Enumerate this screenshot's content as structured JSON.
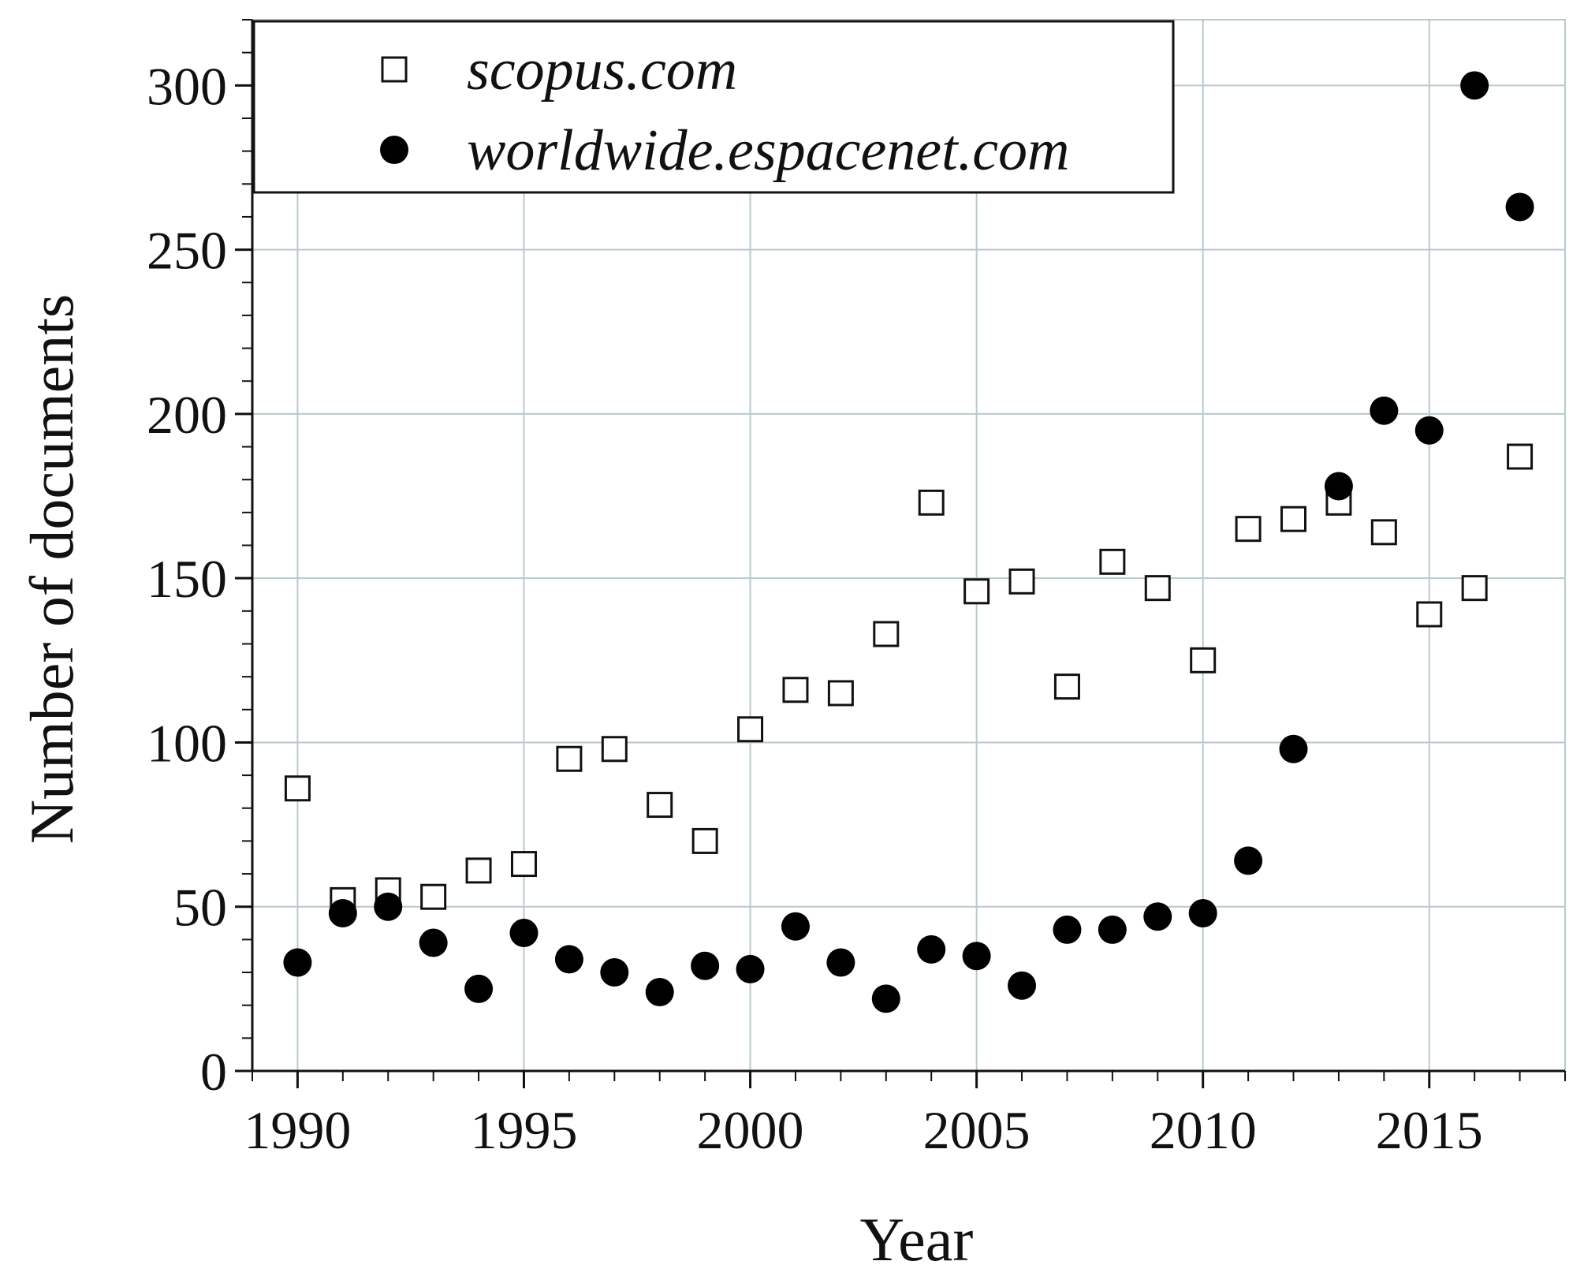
{
  "chart_data": {
    "type": "scatter",
    "xlabel": "Year",
    "ylabel": "Number of documents",
    "xlim": [
      1989,
      2018
    ],
    "ylim": [
      0,
      320
    ],
    "xticks": [
      1990,
      1995,
      2000,
      2005,
      2010,
      2015
    ],
    "xtick_labels": [
      "1990",
      "1995",
      "2000",
      "2005",
      "2010",
      "2015"
    ],
    "yticks": [
      0,
      50,
      100,
      150,
      200,
      250,
      300
    ],
    "ytick_labels": [
      "0",
      "50",
      "100",
      "150",
      "200",
      "250",
      "300"
    ],
    "grid": true,
    "legend_position": "top-left",
    "series": [
      {
        "name": "scopus.com",
        "marker": "open-square",
        "color": "#111111",
        "x": [
          1990,
          1991,
          1992,
          1993,
          1994,
          1995,
          1996,
          1997,
          1998,
          1999,
          2000,
          2001,
          2002,
          2003,
          2004,
          2005,
          2006,
          2007,
          2008,
          2009,
          2010,
          2011,
          2012,
          2013,
          2014,
          2015,
          2016,
          2017
        ],
        "y": [
          86,
          52,
          55,
          53,
          61,
          63,
          95,
          98,
          81,
          70,
          104,
          116,
          115,
          133,
          173,
          146,
          149,
          117,
          155,
          147,
          125,
          165,
          168,
          173,
          164,
          139,
          147,
          187
        ]
      },
      {
        "name": "worldwide.espacenet.com",
        "marker": "filled-circle",
        "color": "#000000",
        "x": [
          1990,
          1991,
          1992,
          1993,
          1994,
          1995,
          1996,
          1997,
          1998,
          1999,
          2000,
          2001,
          2002,
          2003,
          2004,
          2005,
          2006,
          2007,
          2008,
          2009,
          2010,
          2011,
          2012,
          2013,
          2014,
          2015,
          2016,
          2017
        ],
        "y": [
          33,
          48,
          50,
          39,
          25,
          42,
          34,
          30,
          24,
          32,
          31,
          44,
          33,
          22,
          37,
          35,
          26,
          43,
          43,
          47,
          48,
          64,
          98,
          178,
          201,
          195,
          300,
          263
        ]
      }
    ]
  }
}
